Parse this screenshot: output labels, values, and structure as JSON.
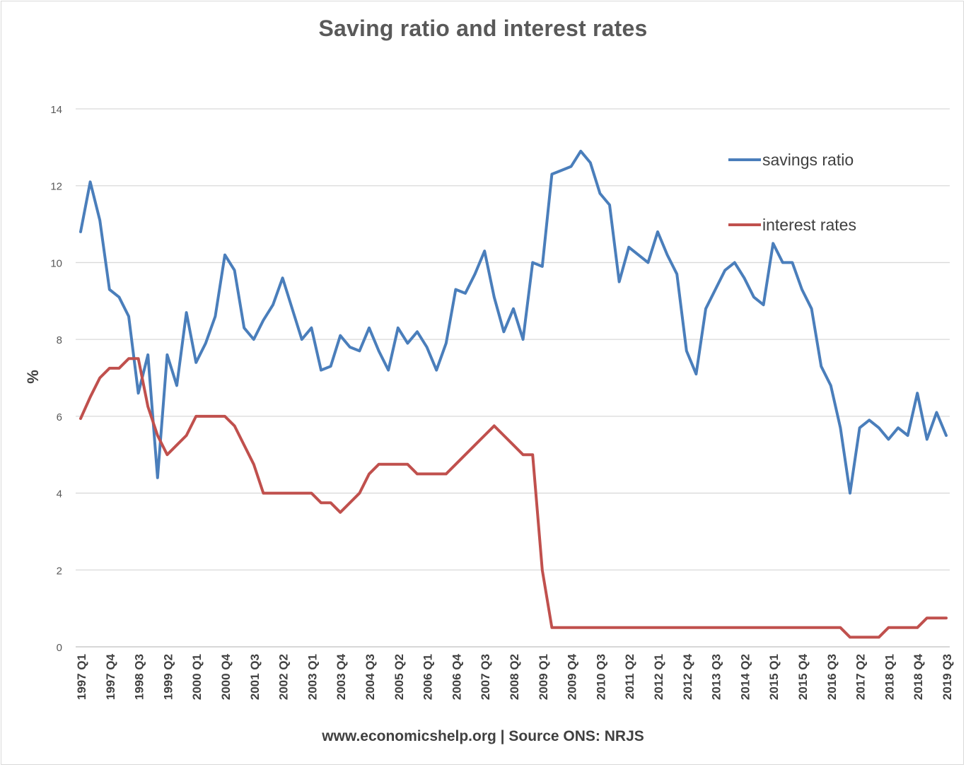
{
  "chart_data": {
    "type": "line",
    "title": "Saving ratio and interest rates",
    "ylabel": "%",
    "xlabel": "www.economicshelp.org | Source ONS: NRJS",
    "ylim": [
      0,
      14
    ],
    "yticks": [
      0,
      2,
      4,
      6,
      8,
      10,
      12,
      14
    ],
    "grid": true,
    "legend_position": "top-right",
    "x_tick_labels": [
      "1997 Q1",
      "1997 Q4",
      "1998 Q3",
      "1999 Q2",
      "2000 Q1",
      "2000 Q4",
      "2001 Q3",
      "2002 Q2",
      "2003 Q1",
      "2003 Q4",
      "2004 Q3",
      "2005 Q2",
      "2006 Q1",
      "2006 Q4",
      "2007 Q3",
      "2008 Q2",
      "2009 Q1",
      "2009 Q4",
      "2010 Q3",
      "2011 Q2",
      "2012 Q1",
      "2012 Q4",
      "2013 Q3",
      "2014 Q2",
      "2015 Q1",
      "2015 Q4",
      "2016 Q3",
      "2017 Q2",
      "2018 Q1",
      "2018 Q4",
      "2019 Q3"
    ],
    "series": [
      {
        "name": "savings ratio",
        "color": "#4a7ebb",
        "values": [
          10.8,
          12.1,
          11.1,
          9.3,
          9.1,
          8.6,
          6.6,
          7.6,
          4.4,
          7.6,
          6.8,
          8.7,
          7.4,
          7.9,
          8.6,
          10.2,
          9.8,
          8.3,
          8.0,
          8.5,
          8.9,
          9.6,
          8.8,
          8.0,
          8.3,
          7.2,
          7.3,
          8.1,
          7.8,
          7.7,
          8.3,
          7.7,
          7.2,
          8.3,
          7.9,
          8.2,
          7.8,
          7.2,
          7.9,
          9.3,
          9.2,
          9.7,
          10.3,
          9.1,
          8.2,
          8.8,
          8.0,
          10.0,
          9.9,
          12.3,
          12.4,
          12.5,
          12.9,
          12.6,
          11.8,
          11.5,
          9.5,
          10.4,
          10.2,
          10.0,
          10.8,
          10.2,
          9.7,
          7.7,
          7.1,
          8.8,
          9.3,
          9.8,
          10.0,
          9.6,
          9.1,
          8.9,
          10.5,
          10.0,
          10.0,
          9.3,
          8.8,
          7.3,
          6.8,
          5.7,
          4.0,
          5.7,
          5.9,
          5.7,
          5.4,
          5.7,
          5.5,
          6.6,
          5.4,
          6.1,
          5.5
        ]
      },
      {
        "name": "interest rates",
        "color": "#c0504d",
        "values": [
          5.94,
          6.5,
          7.0,
          7.25,
          7.25,
          7.5,
          7.5,
          6.25,
          5.5,
          5.0,
          5.25,
          5.5,
          6.0,
          6.0,
          6.0,
          6.0,
          5.75,
          5.25,
          4.75,
          4.0,
          4.0,
          4.0,
          4.0,
          4.0,
          4.0,
          3.75,
          3.75,
          3.5,
          3.75,
          4.0,
          4.5,
          4.75,
          4.75,
          4.75,
          4.75,
          4.5,
          4.5,
          4.5,
          4.5,
          4.75,
          5.0,
          5.25,
          5.5,
          5.75,
          5.5,
          5.25,
          5.0,
          5.0,
          2.0,
          0.5,
          0.5,
          0.5,
          0.5,
          0.5,
          0.5,
          0.5,
          0.5,
          0.5,
          0.5,
          0.5,
          0.5,
          0.5,
          0.5,
          0.5,
          0.5,
          0.5,
          0.5,
          0.5,
          0.5,
          0.5,
          0.5,
          0.5,
          0.5,
          0.5,
          0.5,
          0.5,
          0.5,
          0.5,
          0.5,
          0.5,
          0.25,
          0.25,
          0.25,
          0.25,
          0.5,
          0.5,
          0.5,
          0.5,
          0.75,
          0.75,
          0.75
        ]
      }
    ]
  }
}
